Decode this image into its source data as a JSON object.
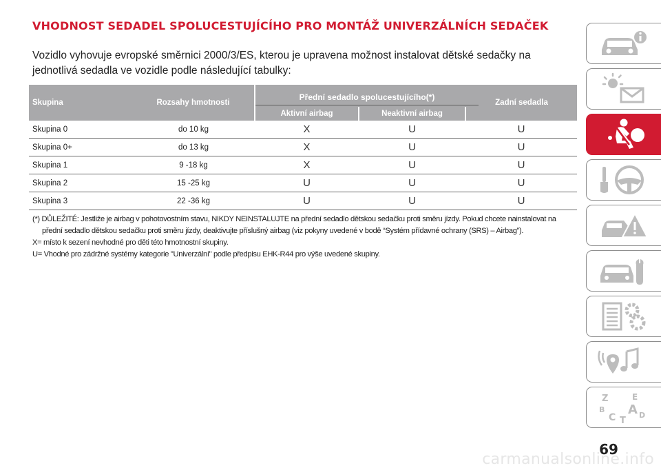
{
  "title": "VHODNOST SEDADEL SPOLUCESTUJÍCÍHO PRO MONTÁŽ UNIVERZÁLNÍCH SEDAČEK",
  "intro": "Vozidlo vyhovuje evropské směrnici 2000/3/ES, kterou je upravena možnost instalovat dětské sedačky na jednotlivá sedadla ve vozidle podle následující tabulky:",
  "table": {
    "headers": {
      "group": "Skupina",
      "weight": "Rozsahy hmotnosti",
      "front": "Přední sedadlo spolucestujícího",
      "front_mark": "(*)",
      "airbag_on": "Aktivní airbag",
      "airbag_off": "Neaktivní airbag",
      "rear": "Zadní sedadla"
    },
    "rows": [
      {
        "group": "Skupina 0",
        "weight": "do 10 kg",
        "airbag_on": "X",
        "airbag_off": "U",
        "rear": "U"
      },
      {
        "group": "Skupina 0+",
        "weight": "do 13 kg",
        "airbag_on": "X",
        "airbag_off": "U",
        "rear": "U"
      },
      {
        "group": "Skupina 1",
        "weight": "9 -18 kg",
        "airbag_on": "X",
        "airbag_off": "U",
        "rear": "U"
      },
      {
        "group": "Skupina 2",
        "weight": "15 -25 kg",
        "airbag_on": "U",
        "airbag_off": "U",
        "rear": "U"
      },
      {
        "group": "Skupina 3",
        "weight": "22 -36 kg",
        "airbag_on": "U",
        "airbag_off": "U",
        "rear": "U"
      }
    ]
  },
  "notes": {
    "important_line1": "(*) DŮLEŽITÉ: Jestliže je airbag v pohotovostním stavu, NIKDY NEINSTALUJTE na přední sedadlo dětskou sedačku proti směru jízdy. Pokud chcete nainstalovat na",
    "important_line2": "přední sedadlo dětskou sedačku proti směru jízdy, deaktivujte příslušný airbag (viz pokyny uvedené v bodě “Systém přídavné ochrany (SRS) – Airbag”).",
    "x_meaning": "X= místo k sezení nevhodné pro děti této hmotnostní skupiny.",
    "u_meaning": "U= Vhodné pro zádržné systémy kategorie \"Univerzální\" podle předpisu EHK-R44 pro výše uvedené skupiny."
  },
  "sidebar": {
    "tabs": [
      {
        "icon": "car-info-icon",
        "active": false
      },
      {
        "icon": "dashboard-lights-icon",
        "active": false
      },
      {
        "icon": "seatbelt-airbag-icon",
        "active": true
      },
      {
        "icon": "steering-wheel-icon",
        "active": false
      },
      {
        "icon": "car-warning-icon",
        "active": false
      },
      {
        "icon": "car-service-icon",
        "active": false
      },
      {
        "icon": "technical-data-icon",
        "active": false
      },
      {
        "icon": "multimedia-icon",
        "active": false
      },
      {
        "icon": "index-az-icon",
        "active": false
      }
    ],
    "index_letters": [
      "Z",
      "E",
      "B",
      "A",
      "C",
      "D",
      "T"
    ]
  },
  "page_number": "69",
  "watermark": "carmanualsonline.info",
  "colors": {
    "accent": "#d11b31",
    "header_bg": "#a9a9ab",
    "tab_border": "#8e8e8e"
  }
}
